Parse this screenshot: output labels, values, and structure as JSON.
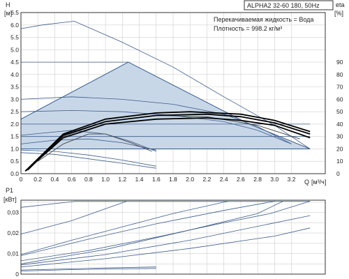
{
  "header": {
    "model": "ALPHA2 32-60 180, 50Hz",
    "fluid_line": "Перекачиваемая жидкость = Вода",
    "density_line": "Плотность = 998.2 кг/м³"
  },
  "chart_data": [
    {
      "type": "line",
      "title": "",
      "ylabel": "H",
      "yunit": "[м]",
      "y2label": "eta",
      "y2unit": "[%]",
      "xlabel": "Q",
      "xunit": "[м³/ч]",
      "xlim": [
        0,
        3.6
      ],
      "ylim": [
        0,
        6.5
      ],
      "y2lim": [
        0,
        100
      ],
      "x_ticks": [
        "0",
        "0.2",
        "0.4",
        "0.6",
        "0.8",
        "1.0",
        "1.2",
        "1.4",
        "1.6",
        "1.8",
        "2.0",
        "2.2",
        "2.4",
        "2.6",
        "2.8",
        "3.0",
        "3.2"
      ],
      "y_ticks": [
        "0.0",
        "0.5",
        "1.0",
        "1.5",
        "2.0",
        "2.5",
        "3.0",
        "3.5",
        "4.0",
        "4.5",
        "5.0",
        "5.5",
        "6.0",
        "6.5"
      ],
      "y2_ticks": [
        "0",
        "10",
        "20",
        "30",
        "40",
        "50",
        "60",
        "70",
        "80",
        "90"
      ],
      "grid": true,
      "shaded_area": [
        [
          0,
          1.0
        ],
        [
          0,
          2.2
        ],
        [
          1.27,
          4.5
        ],
        [
          2.7,
          2.0
        ],
        [
          3.42,
          1.0
        ],
        [
          0,
          1.0
        ]
      ],
      "series": [
        {
          "style": "thin",
          "points": [
            [
              0,
              5.85
            ],
            [
              0.25,
              6.0
            ],
            [
              0.63,
              6.15
            ],
            [
              1.2,
              5.3
            ],
            [
              1.8,
              4.3
            ],
            [
              2.4,
              3.1
            ],
            [
              3.0,
              1.95
            ],
            [
              3.42,
              1.0
            ]
          ]
        },
        {
          "style": "thin",
          "points": [
            [
              0,
              4.5
            ],
            [
              1.27,
              4.5
            ]
          ]
        },
        {
          "style": "thin",
          "points": [
            [
              0,
              3.0
            ],
            [
              0.6,
              3.1
            ],
            [
              1.2,
              3.0
            ],
            [
              1.8,
              2.8
            ],
            [
              2.4,
              2.4
            ],
            [
              2.8,
              1.9
            ],
            [
              3.2,
              1.2
            ]
          ]
        },
        {
          "style": "thin",
          "points": [
            [
              0,
              2.5
            ],
            [
              0.6,
              2.55
            ],
            [
              1.2,
              2.5
            ],
            [
              1.8,
              2.35
            ],
            [
              2.4,
              2.1
            ],
            [
              2.8,
              1.75
            ],
            [
              3.2,
              1.2
            ]
          ]
        },
        {
          "style": "thin",
          "points": [
            [
              0,
              2.0
            ],
            [
              3.42,
              2.0
            ]
          ]
        },
        {
          "style": "thin",
          "points": [
            [
              0,
              1.5
            ],
            [
              3.42,
              1.5
            ]
          ]
        },
        {
          "style": "thin",
          "points": [
            [
              0,
              1.55
            ],
            [
              0.3,
              1.65
            ],
            [
              0.6,
              1.75
            ],
            [
              1.0,
              1.6
            ],
            [
              1.3,
              1.3
            ],
            [
              1.6,
              0.9
            ]
          ]
        },
        {
          "style": "thin",
          "points": [
            [
              0,
              1.2
            ],
            [
              0.4,
              1.35
            ],
            [
              0.8,
              1.4
            ],
            [
              1.2,
              1.25
            ],
            [
              1.6,
              0.95
            ]
          ]
        },
        {
          "style": "thin",
          "points": [
            [
              0,
              0.95
            ],
            [
              0.4,
              0.9
            ],
            [
              0.8,
              0.75
            ],
            [
              1.2,
              0.55
            ],
            [
              1.6,
              0.3
            ]
          ]
        },
        {
          "style": "thin",
          "points": [
            [
              0,
              0.85
            ],
            [
              0.4,
              0.78
            ],
            [
              0.8,
              0.6
            ],
            [
              1.2,
              0.42
            ],
            [
              1.6,
              0.22
            ]
          ]
        },
        {
          "style": "eta",
          "points": [
            [
              0.2,
              0.5
            ],
            [
              0.5,
              1.2
            ],
            [
              0.8,
              1.6
            ],
            [
              1.0,
              1.6
            ],
            [
              1.3,
              1.25
            ],
            [
              1.55,
              0.9
            ]
          ]
        },
        {
          "style": "eta",
          "points": [
            [
              0.12,
              0.3
            ],
            [
              0.5,
              1.5
            ],
            [
              1.0,
              2.1
            ],
            [
              1.6,
              2.35
            ],
            [
              2.2,
              2.3
            ],
            [
              2.8,
              1.95
            ],
            [
              3.3,
              1.4
            ]
          ]
        },
        {
          "style": "thick",
          "points": [
            [
              0.08,
              0.15
            ],
            [
              0.5,
              1.55
            ],
            [
              1.0,
              2.1
            ],
            [
              1.6,
              2.35
            ],
            [
              2.2,
              2.4
            ],
            [
              2.6,
              2.3
            ],
            [
              3.0,
              2.05
            ],
            [
              3.42,
              1.6
            ]
          ]
        },
        {
          "style": "thick",
          "points": [
            [
              0.05,
              0.1
            ],
            [
              0.5,
              1.6
            ],
            [
              1.0,
              2.2
            ],
            [
              1.6,
              2.45
            ],
            [
              2.0,
              2.5
            ],
            [
              2.6,
              2.4
            ],
            [
              3.0,
              2.15
            ],
            [
              3.42,
              1.7
            ]
          ]
        },
        {
          "style": "thick",
          "points": [
            [
              0.06,
              0.12
            ],
            [
              0.5,
              1.45
            ],
            [
              1.0,
              2.0
            ],
            [
              1.6,
              2.2
            ],
            [
              2.2,
              2.25
            ],
            [
              2.6,
              2.15
            ],
            [
              3.0,
              1.95
            ],
            [
              3.42,
              1.45
            ]
          ]
        }
      ]
    },
    {
      "type": "line",
      "title": "",
      "ylabel": "P1",
      "yunit": "[кВт]",
      "xlim": [
        0,
        3.6
      ],
      "ylim": [
        0,
        0.036
      ],
      "y_ticks": [
        "0",
        "0,01",
        "0,02",
        "0,03"
      ],
      "grid": true,
      "series": [
        {
          "points": [
            [
              0,
              0.0325
            ],
            [
              0.65,
              0.0355
            ],
            [
              3.42,
              0.0355
            ]
          ]
        },
        {
          "points": [
            [
              0,
              0.0195
            ],
            [
              0.6,
              0.026
            ],
            [
              1.25,
              0.0355
            ]
          ]
        },
        {
          "points": [
            [
              0,
              0.0095
            ],
            [
              0.6,
              0.0165
            ],
            [
              1.2,
              0.023
            ],
            [
              1.8,
              0.0295
            ],
            [
              2.45,
              0.0355
            ]
          ]
        },
        {
          "points": [
            [
              0,
              0.009
            ],
            [
              0.8,
              0.017
            ],
            [
              1.6,
              0.0245
            ],
            [
              2.4,
              0.031
            ],
            [
              3.0,
              0.0355
            ]
          ]
        },
        {
          "points": [
            [
              0,
              0.0065
            ],
            [
              0.8,
              0.0115
            ],
            [
              1.6,
              0.018
            ],
            [
              2.4,
              0.025
            ],
            [
              2.95,
              0.0295
            ],
            [
              3.42,
              0.0355
            ]
          ]
        },
        {
          "points": [
            [
              0,
              0.005
            ],
            [
              1.0,
              0.012
            ],
            [
              2.0,
              0.0215
            ],
            [
              2.8,
              0.0295
            ],
            [
              3.1,
              0.0355
            ]
          ]
        },
        {
          "points": [
            [
              0,
              0.0045
            ],
            [
              1.0,
              0.0095
            ],
            [
              2.0,
              0.0165
            ],
            [
              3.42,
              0.0285
            ]
          ]
        },
        {
          "points": [
            [
              0,
              0.0035
            ],
            [
              1.0,
              0.0075
            ],
            [
              2.0,
              0.0125
            ],
            [
              3.0,
              0.0185
            ],
            [
              3.42,
              0.0225
            ]
          ]
        },
        {
          "points": [
            [
              0,
              0.002
            ],
            [
              1.0,
              0.003
            ],
            [
              1.6,
              0.0035
            ]
          ]
        },
        {
          "points": [
            [
              0,
              0.0015
            ],
            [
              0.6,
              0.0022
            ],
            [
              1.6,
              0.0028
            ]
          ]
        }
      ]
    }
  ]
}
